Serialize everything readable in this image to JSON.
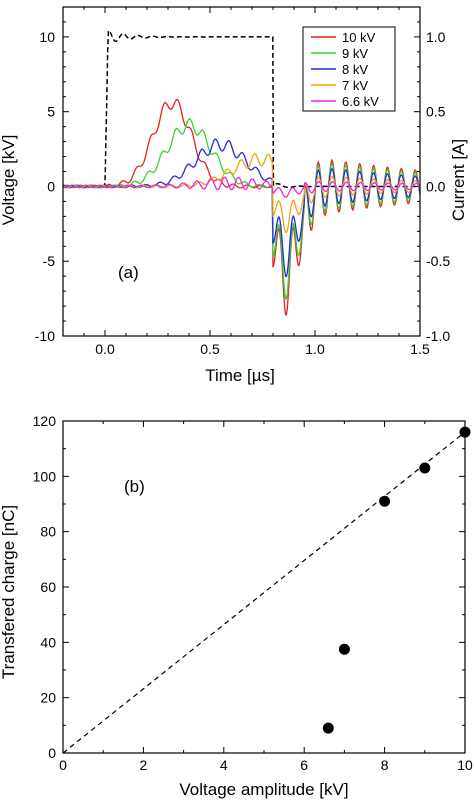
{
  "chart_data": [
    {
      "panel_label": "(a)",
      "type": "line",
      "xlabel": "Time [µs]",
      "ylabel": "Voltage [kV]",
      "y2label": "Current [A]",
      "xlim": [
        -0.2,
        1.5
      ],
      "ylim": [
        -10,
        12
      ],
      "y2lim": [
        -1.0,
        1.2
      ],
      "xticks": [
        "0.0",
        "0.5",
        "1.0",
        "1.5"
      ],
      "yticks": [
        "-10",
        "-5",
        "0",
        "5",
        "10"
      ],
      "y2ticks": [
        "-1.0",
        "-0.5",
        "0.0",
        "0.5",
        "1.0"
      ],
      "legend_position": "top-right",
      "series": [
        {
          "name": "10 kV",
          "color": "#e8211d",
          "peak": 5.6,
          "peak_t": 0.32,
          "neg": -8.5
        },
        {
          "name": "9 kV",
          "color": "#3bd12f",
          "peak": 4.1,
          "peak_t": 0.4,
          "neg": -7.5
        },
        {
          "name": "8 kV",
          "color": "#1c2fd6",
          "peak": 2.8,
          "peak_t": 0.55,
          "neg": -6.0
        },
        {
          "name": "7 kV",
          "color": "#f2a20d",
          "peak": 1.8,
          "peak_t": 0.74,
          "neg": -3.0
        },
        {
          "name": "6.6 kV",
          "color": "#e626e0",
          "peak": 0.2,
          "peak_t": 0.6,
          "neg": -0.6
        }
      ],
      "current_pulse": {
        "style": "dashed",
        "color": "#000000",
        "axis": "right",
        "rise_t": 0.0,
        "fall_t": 0.8,
        "level": 1.0
      }
    },
    {
      "panel_label": "(b)",
      "type": "scatter",
      "xlabel": "Voltage amplitude [kV]",
      "ylabel": "Transfered charge [nC]",
      "xlim": [
        0,
        10
      ],
      "ylim": [
        0,
        120
      ],
      "xticks": [
        "0",
        "2",
        "4",
        "6",
        "8",
        "10"
      ],
      "yticks": [
        "0",
        "20",
        "40",
        "60",
        "80",
        "100",
        "120"
      ],
      "points": [
        {
          "x": 6.6,
          "y": 9
        },
        {
          "x": 7,
          "y": 37.5
        },
        {
          "x": 8,
          "y": 91
        },
        {
          "x": 9,
          "y": 103
        },
        {
          "x": 10,
          "y": 116
        }
      ],
      "fit_line": {
        "style": "dashed",
        "x": [
          0,
          10
        ],
        "y": [
          0,
          116
        ]
      }
    }
  ]
}
